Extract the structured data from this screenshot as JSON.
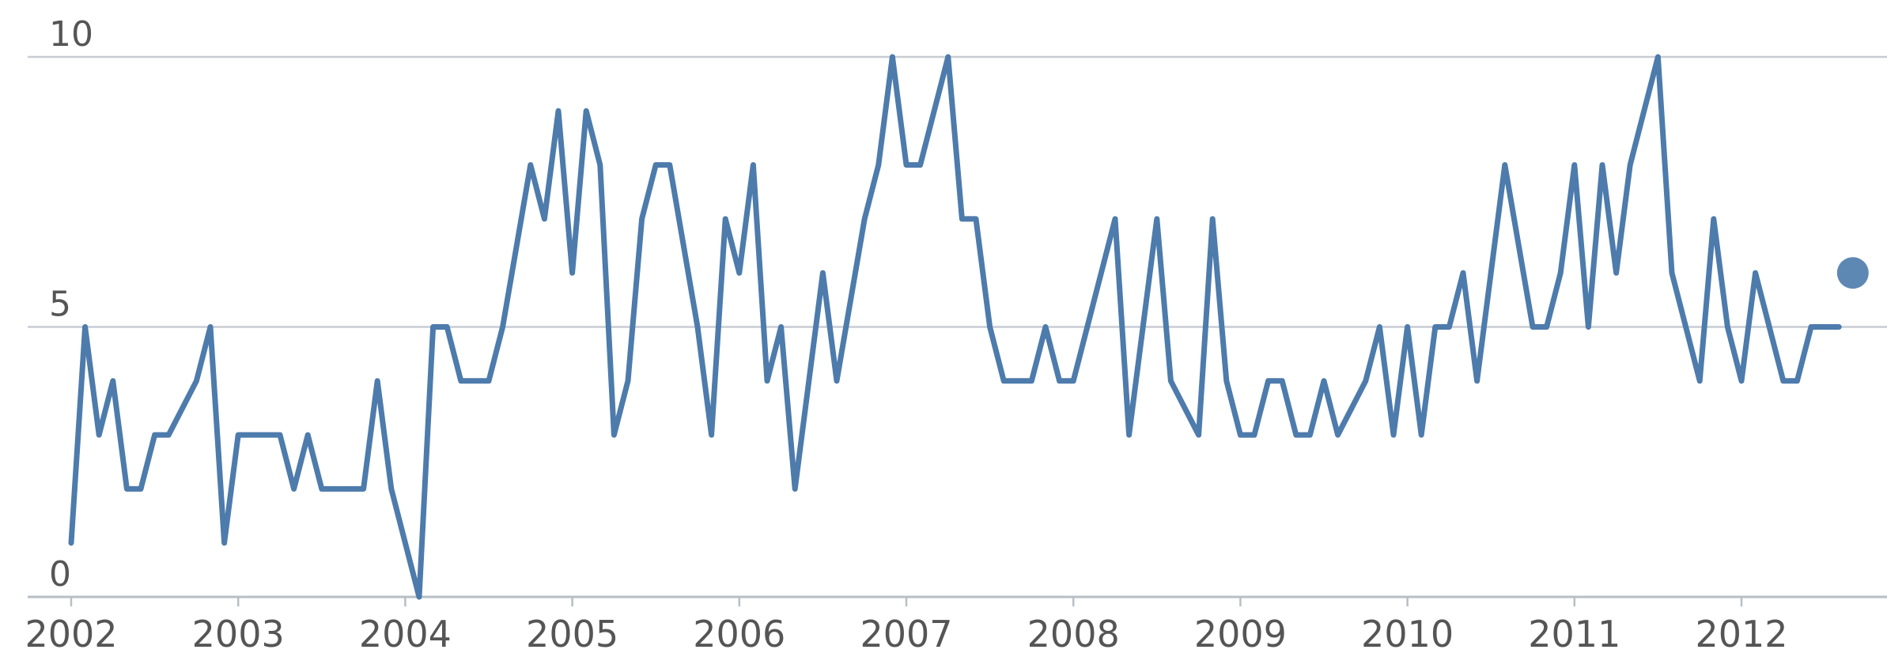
{
  "chart_data": {
    "type": "line",
    "title": "",
    "xlabel": "",
    "ylabel": "",
    "ylim": [
      0,
      10
    ],
    "xlim": [
      "2002-01",
      "2012-09"
    ],
    "yticks": [
      "0",
      "5",
      "10"
    ],
    "xticks": [
      "2002",
      "2003",
      "2004",
      "2005",
      "2006",
      "2007",
      "2008",
      "2009",
      "2010",
      "2011",
      "2012"
    ],
    "grid": true,
    "legend": "none",
    "colors": {
      "line": "#4d7bac",
      "grid": "#c8ccd2",
      "text": "#555555"
    },
    "x": [
      "2002-01",
      "2002-02",
      "2002-03",
      "2002-04",
      "2002-05",
      "2002-06",
      "2002-07",
      "2002-08",
      "2002-09",
      "2002-10",
      "2002-11",
      "2002-12",
      "2003-01",
      "2003-02",
      "2003-03",
      "2003-04",
      "2003-05",
      "2003-06",
      "2003-07",
      "2003-08",
      "2003-09",
      "2003-10",
      "2003-11",
      "2003-12",
      "2004-01",
      "2004-02",
      "2004-03",
      "2004-04",
      "2004-05",
      "2004-06",
      "2004-07",
      "2004-08",
      "2004-09",
      "2004-10",
      "2004-11",
      "2004-12",
      "2005-01",
      "2005-02",
      "2005-03",
      "2005-04",
      "2005-05",
      "2005-06",
      "2005-07",
      "2005-08",
      "2005-09",
      "2005-10",
      "2005-11",
      "2005-12",
      "2006-01",
      "2006-02",
      "2006-03",
      "2006-04",
      "2006-05",
      "2006-06",
      "2006-07",
      "2006-08",
      "2006-09",
      "2006-10",
      "2006-11",
      "2006-12",
      "2007-01",
      "2007-02",
      "2007-03",
      "2007-04",
      "2007-05",
      "2007-06",
      "2007-07",
      "2007-08",
      "2007-09",
      "2007-10",
      "2007-11",
      "2007-12",
      "2008-01",
      "2008-02",
      "2008-03",
      "2008-04",
      "2008-05",
      "2008-06",
      "2008-07",
      "2008-08",
      "2008-09",
      "2008-10",
      "2008-11",
      "2008-12",
      "2009-01",
      "2009-02",
      "2009-03",
      "2009-04",
      "2009-05",
      "2009-06",
      "2009-07",
      "2009-08",
      "2009-09",
      "2009-10",
      "2009-11",
      "2009-12",
      "2010-01",
      "2010-02",
      "2010-03",
      "2010-04",
      "2010-05",
      "2010-06",
      "2010-07",
      "2010-08",
      "2010-09",
      "2010-10",
      "2010-11",
      "2010-12",
      "2011-01",
      "2011-02",
      "2011-03",
      "2011-04",
      "2011-05",
      "2011-06",
      "2011-07",
      "2011-08",
      "2011-09",
      "2011-10",
      "2011-11",
      "2011-12",
      "2012-01",
      "2012-02",
      "2012-03",
      "2012-04",
      "2012-05",
      "2012-06",
      "2012-07",
      "2012-08"
    ],
    "series": [
      {
        "values": [
          1,
          5,
          3,
          4,
          2,
          2,
          3,
          3,
          3.5,
          4,
          5,
          1,
          3,
          3,
          3,
          3,
          2,
          3,
          2,
          2,
          2,
          2,
          4,
          2,
          1,
          0,
          5,
          5,
          4,
          4,
          4,
          5,
          6.5,
          8,
          7,
          9,
          6,
          9,
          8,
          3,
          4,
          7,
          8,
          8,
          6.5,
          5,
          3,
          7,
          6,
          8,
          4,
          5,
          2,
          4,
          6,
          4,
          5.5,
          7,
          8,
          10,
          8,
          8,
          9,
          10,
          7,
          7,
          5,
          4,
          4,
          4,
          5,
          4,
          4,
          5,
          6,
          7,
          3,
          5,
          7,
          4,
          3.5,
          3,
          7,
          4,
          3,
          3,
          4,
          4,
          3,
          3,
          4,
          3,
          3.5,
          4,
          5,
          3,
          5,
          3,
          5,
          5,
          6,
          4,
          6,
          8,
          6.5,
          5,
          5,
          6,
          8,
          5,
          8,
          6,
          8,
          9,
          10,
          6,
          5,
          4,
          7,
          5,
          4,
          6,
          5,
          4,
          4,
          5,
          5,
          5
        ]
      }
    ],
    "end_marker": {
      "x": "2012-09",
      "y": 6
    }
  }
}
